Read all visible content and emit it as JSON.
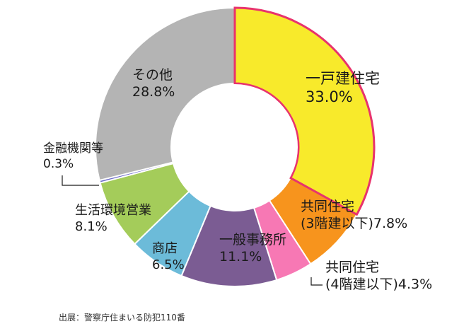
{
  "chart_data": {
    "type": "pie",
    "donut": true,
    "slices": [
      {
        "label_lines": [
          "一戸建住宅"
        ],
        "value_text": "33.0%",
        "value": 33.0,
        "color": "#f8ea2b",
        "highlight": true
      },
      {
        "label_lines": [
          "共同住宅",
          "(3階建以下)7.8%"
        ],
        "value_text": "",
        "value": 7.8,
        "color": "#f7941d"
      },
      {
        "label_lines": [
          "共同住宅",
          "(4階建以下)4.3%"
        ],
        "value_text": "",
        "value": 4.3,
        "color": "#f778b4"
      },
      {
        "label_lines": [
          "一般事務所"
        ],
        "value_text": "11.1%",
        "value": 11.1,
        "color": "#7b5c93"
      },
      {
        "label_lines": [
          "商店"
        ],
        "value_text": "6.5%",
        "value": 6.5,
        "color": "#6cbbd9"
      },
      {
        "label_lines": [
          "生活環境営業"
        ],
        "value_text": "8.1%",
        "value": 8.1,
        "color": "#a4cc5a"
      },
      {
        "label_lines": [
          "金融機関等"
        ],
        "value_text": "0.3%",
        "value": 0.3,
        "color": "#6f6fc9"
      },
      {
        "label_lines": [
          "その他"
        ],
        "value_text": "28.8%",
        "value": 28.8,
        "color": "#b4b4b4"
      }
    ],
    "highlight_color": "#e8336d"
  },
  "source": "出展：警察庁住まいる防犯110番"
}
